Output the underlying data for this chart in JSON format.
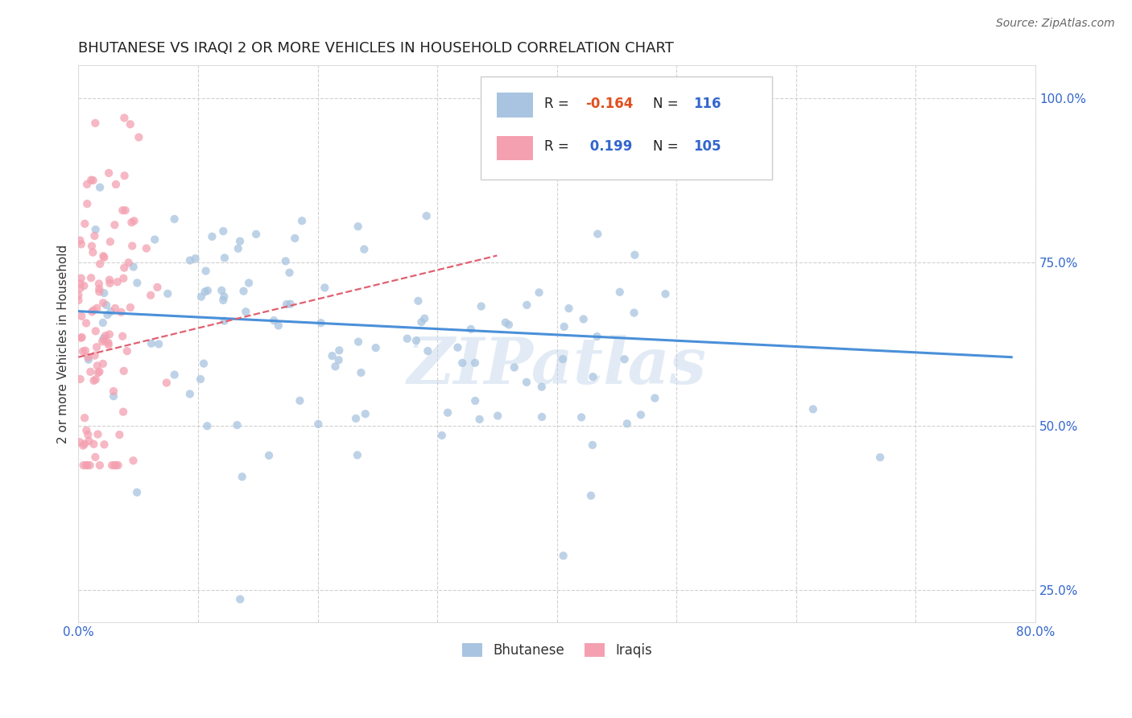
{
  "title": "BHUTANESE VS IRAQI 2 OR MORE VEHICLES IN HOUSEHOLD CORRELATION CHART",
  "source_text": "Source: ZipAtlas.com",
  "ylabel": "2 or more Vehicles in Household",
  "xlim": [
    0.0,
    0.8
  ],
  "ylim": [
    0.2,
    1.05
  ],
  "x_ticks": [
    0.0,
    0.1,
    0.2,
    0.3,
    0.4,
    0.5,
    0.6,
    0.7,
    0.8
  ],
  "x_tick_labels": [
    "0.0%",
    "",
    "",
    "",
    "",
    "",
    "",
    "",
    "80.0%"
  ],
  "y_ticks": [
    0.25,
    0.5,
    0.75,
    1.0
  ],
  "y_tick_labels": [
    "25.0%",
    "50.0%",
    "75.0%",
    "100.0%"
  ],
  "blue_color": "#a8c4e0",
  "pink_color": "#f4a0b0",
  "blue_line_color": "#4a90d9",
  "pink_line_color": "#e06070",
  "R_blue": -0.164,
  "N_blue": 116,
  "R_pink": 0.199,
  "N_pink": 105,
  "legend_labels": [
    "Bhutanese",
    "Iraqis"
  ],
  "watermark": "ZIPatlas",
  "title_fontsize": 13,
  "axis_label_fontsize": 11,
  "tick_fontsize": 11,
  "source_fontsize": 10,
  "background_color": "#ffffff",
  "grid_color": "#cccccc",
  "blue_trend_start_y": 0.675,
  "blue_trend_end_y": 0.605,
  "pink_trend_x0": 0.0,
  "pink_trend_y0": 0.605,
  "pink_trend_x1": 0.35,
  "pink_trend_y1": 0.76
}
